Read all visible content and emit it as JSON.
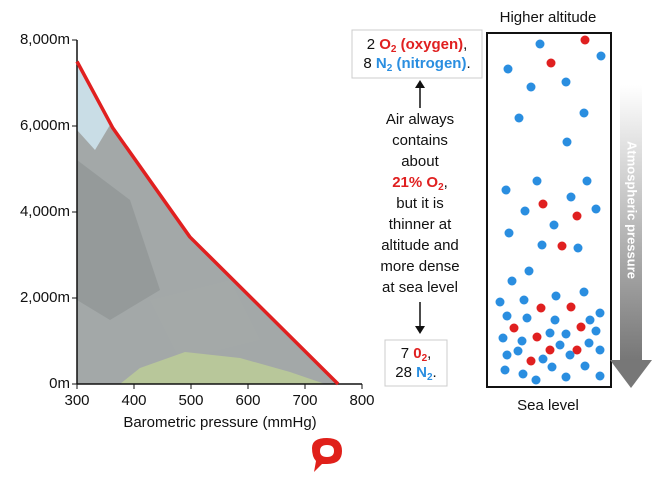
{
  "chart_data": {
    "type": "line",
    "x": [
      300,
      363,
      498,
      758
    ],
    "values": [
      7500,
      5950,
      3420,
      0
    ],
    "color": "#e02020",
    "xlim": [
      300,
      800
    ],
    "xticks": [
      300,
      400,
      500,
      600,
      700,
      800
    ],
    "ylim": [
      0,
      8000
    ],
    "yticks": [
      {
        "value": 0,
        "label": "0m"
      },
      {
        "value": 2000,
        "label": "2,000m"
      },
      {
        "value": 4000,
        "label": "4,000m"
      },
      {
        "value": 6000,
        "label": "6,000m"
      },
      {
        "value": 8000,
        "label": "8,000m"
      }
    ],
    "xlabel": "Barometric pressure (mmHg)"
  },
  "diagram": {
    "top_label": "Higher altitude",
    "bottom_label": "Sea level",
    "arrow_label": "Atmospheric pressure",
    "top_note": [
      [
        "2 ",
        "O",
        "2",
        " (oxygen)",
        ","
      ],
      [
        "8 ",
        "N",
        "2",
        " (nitrogen)",
        "."
      ]
    ],
    "middle_note": [
      "Air always",
      "contains",
      "about",
      [
        "21% O",
        "2",
        ","
      ],
      "but it is",
      "thinner at",
      "altitude and",
      "more dense",
      "at sea level"
    ],
    "bottom_note": [
      [
        "7 ",
        "0",
        "2",
        ","
      ],
      [
        "28 ",
        "N",
        "2",
        "."
      ]
    ]
  }
}
